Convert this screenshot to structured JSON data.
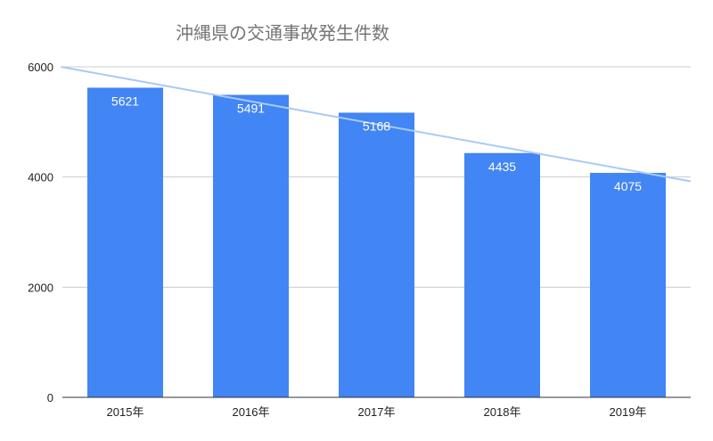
{
  "chart_data": {
    "type": "bar",
    "title": "沖縄県の交通事故発生件数",
    "xlabel": "",
    "ylabel": "",
    "categories": [
      "2015年",
      "2016年",
      "2017年",
      "2018年",
      "2019年"
    ],
    "values": [
      5621,
      5491,
      5168,
      4435,
      4075
    ],
    "data_labels": [
      "5621",
      "5491",
      "5168",
      "4435",
      "4075"
    ],
    "ylim": [
      0,
      6000
    ],
    "yticks": [
      "0",
      "2000",
      "4000",
      "6000"
    ],
    "grid": true,
    "trendline": {
      "type": "linear",
      "color": "#a9c9f7"
    },
    "colors": {
      "bar": "#4285f4",
      "grid": "#cccccc",
      "axis": "#333333",
      "title": "#757575"
    }
  }
}
